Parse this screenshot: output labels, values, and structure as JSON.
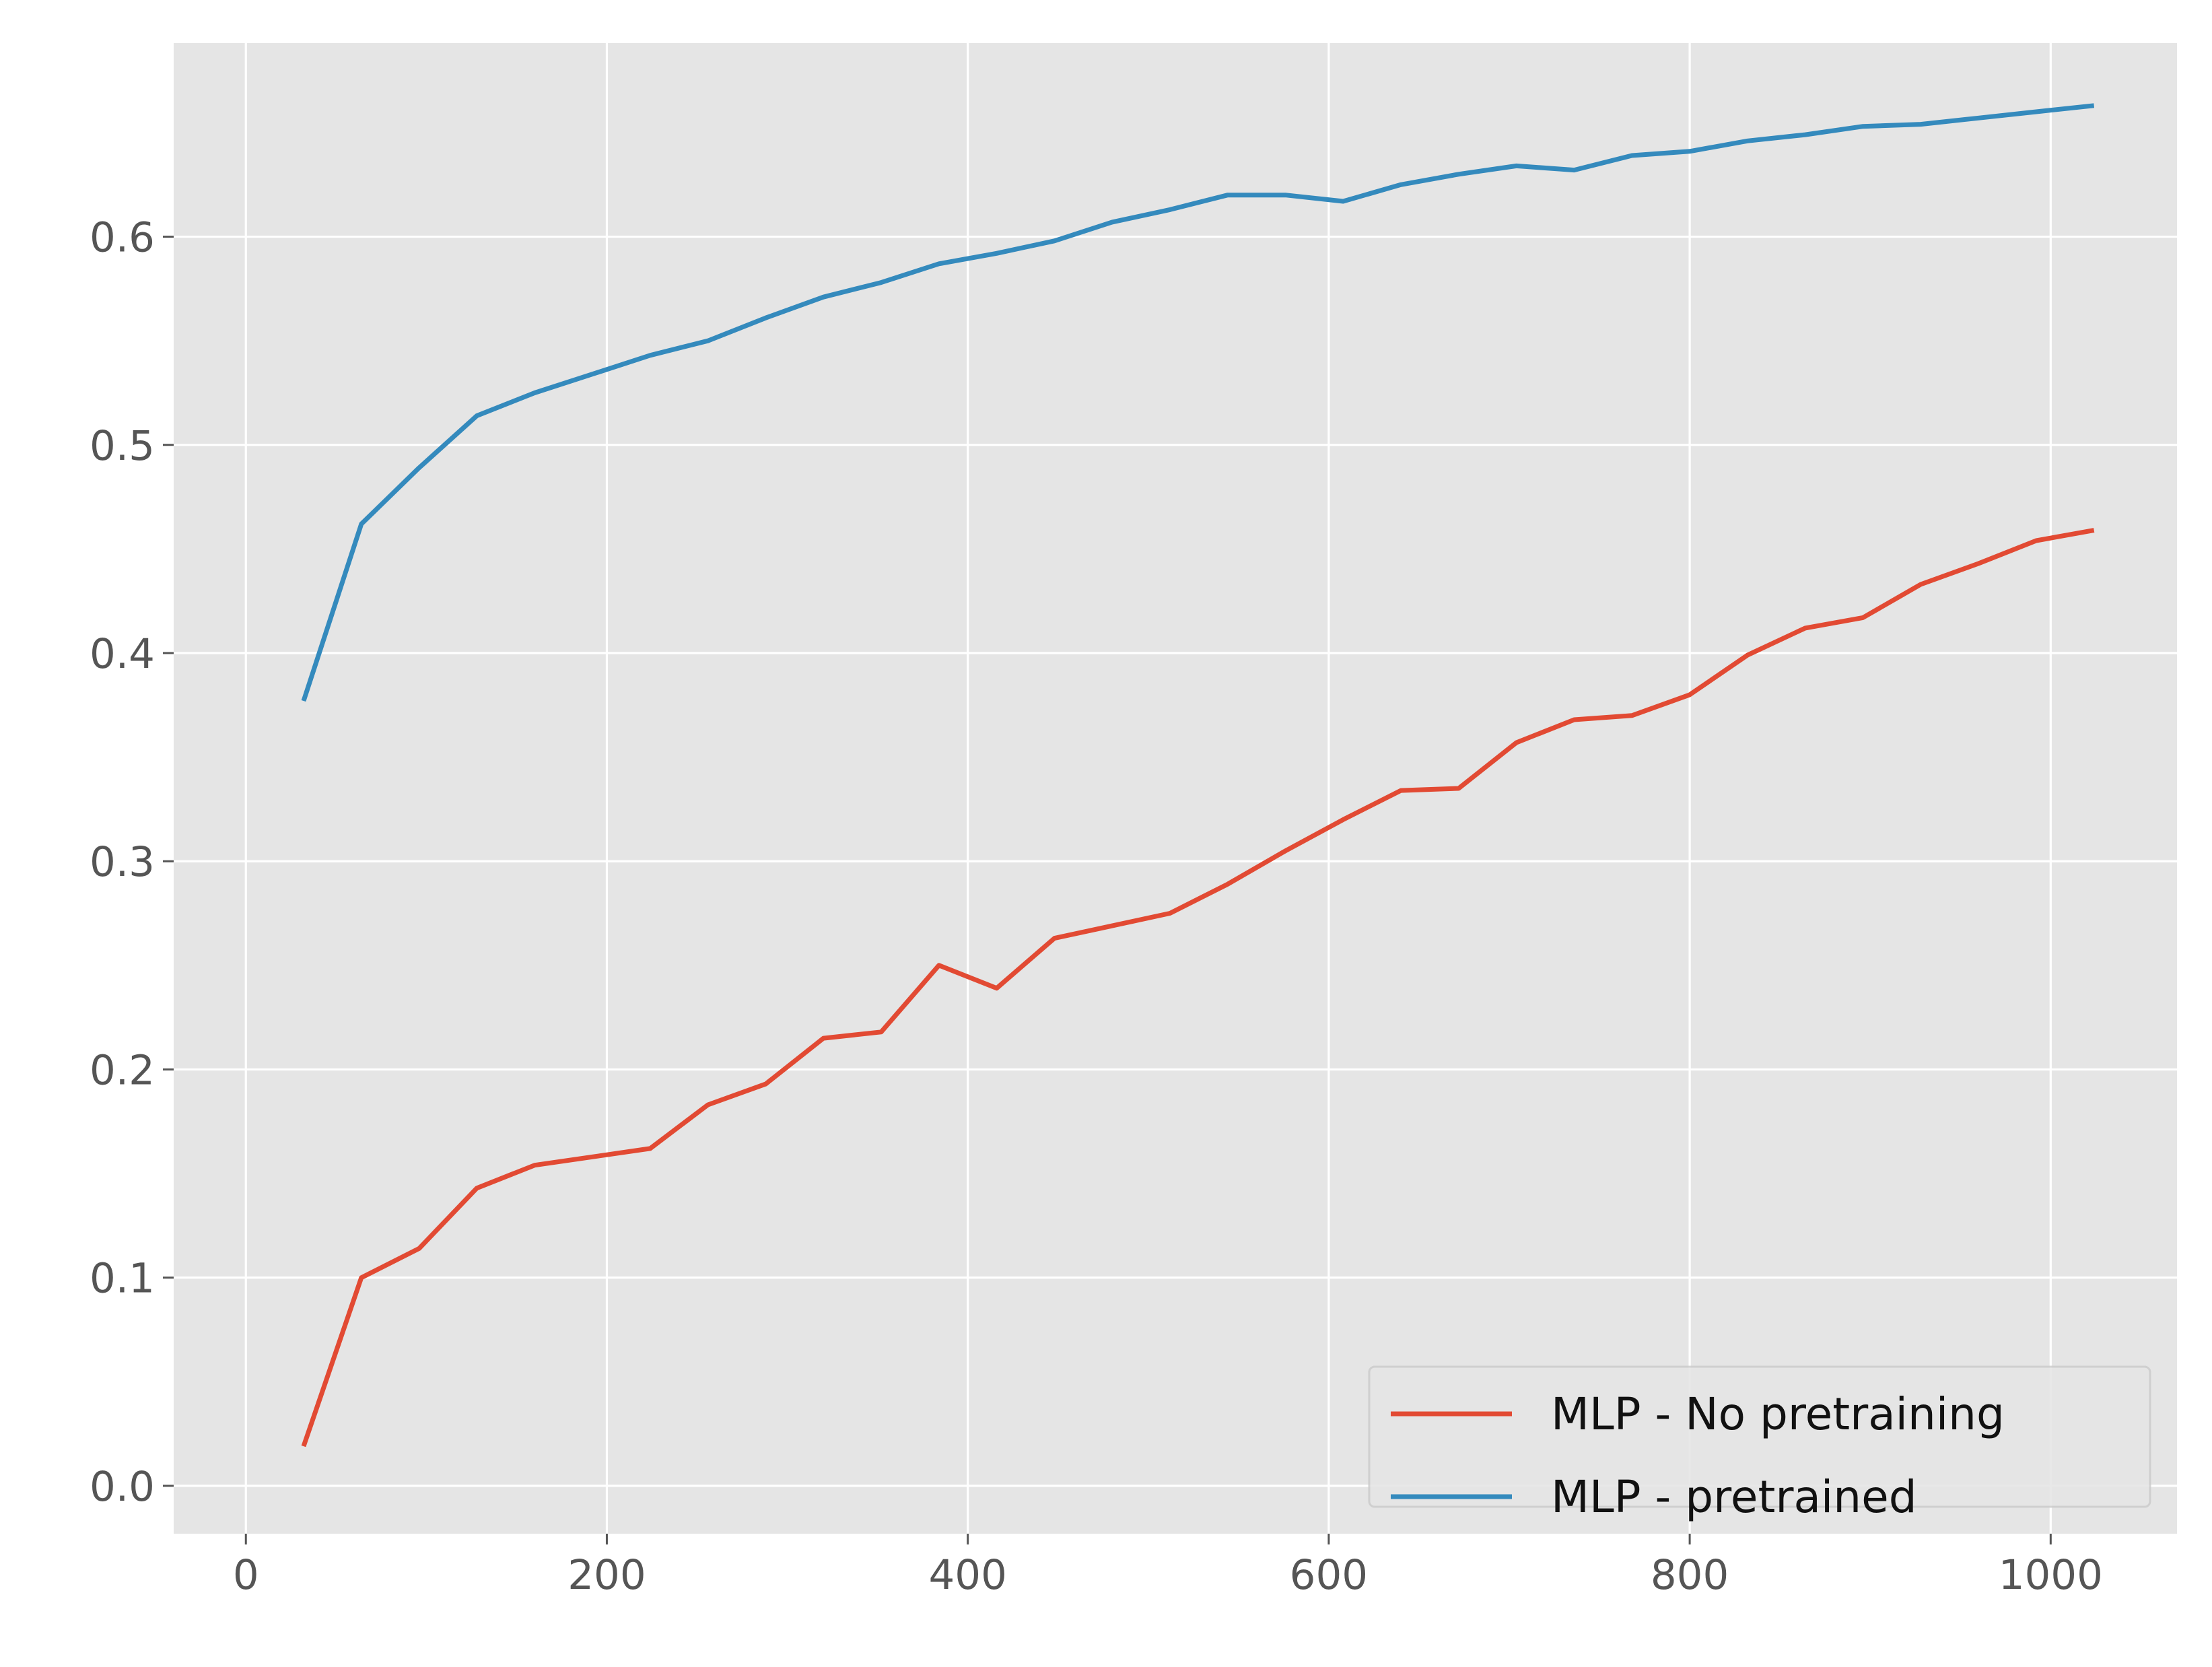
{
  "chart_data": {
    "type": "line",
    "title": "",
    "xlabel": "",
    "ylabel": "",
    "style": "ggplot",
    "grid": true,
    "legend_position": "lower right",
    "xlim": [
      -40,
      1070
    ],
    "ylim": [
      -0.023,
      0.693
    ],
    "xticks": [
      0,
      200,
      400,
      600,
      800,
      1000
    ],
    "xtick_labels": [
      "0",
      "200",
      "400",
      "600",
      "800",
      "1000"
    ],
    "yticks": [
      0.0,
      0.1,
      0.2,
      0.3,
      0.4,
      0.5,
      0.6
    ],
    "ytick_labels": [
      "0.0",
      "0.1",
      "0.2",
      "0.3",
      "0.4",
      "0.5",
      "0.6"
    ],
    "x": [
      32,
      64,
      96,
      128,
      160,
      192,
      224,
      256,
      288,
      320,
      352,
      384,
      416,
      448,
      480,
      512,
      544,
      576,
      608,
      640,
      672,
      704,
      736,
      768,
      800,
      832,
      864,
      896,
      928,
      960,
      992,
      1024
    ],
    "series": [
      {
        "name": "MLP - No pretraining",
        "color": "#E24A33",
        "values": [
          0.019,
          0.1,
          0.114,
          0.143,
          0.154,
          0.158,
          0.162,
          0.183,
          0.193,
          0.215,
          0.218,
          0.25,
          0.239,
          0.263,
          0.269,
          0.275,
          0.289,
          0.305,
          0.32,
          0.334,
          0.335,
          0.357,
          0.368,
          0.37,
          0.38,
          0.399,
          0.412,
          0.417,
          0.433,
          0.443,
          0.454,
          0.459
        ]
      },
      {
        "name": "MLP - pretrained",
        "color": "#348ABD",
        "values": [
          0.377,
          0.462,
          0.489,
          0.514,
          0.525,
          0.534,
          0.543,
          0.55,
          0.561,
          0.571,
          0.578,
          0.587,
          0.592,
          0.598,
          0.607,
          0.613,
          0.62,
          0.62,
          0.617,
          0.625,
          0.63,
          0.634,
          0.632,
          0.639,
          0.641,
          0.646,
          0.649,
          0.653,
          0.654,
          0.657,
          0.66,
          0.663
        ]
      }
    ]
  },
  "colors": {
    "figure_background": "#FFFFFF",
    "axes_background": "#E5E5E5",
    "grid": "#FFFFFF",
    "tick_label": "#555555",
    "legend_face": "#E5E5E5",
    "legend_edge": "#CCCCCC"
  }
}
